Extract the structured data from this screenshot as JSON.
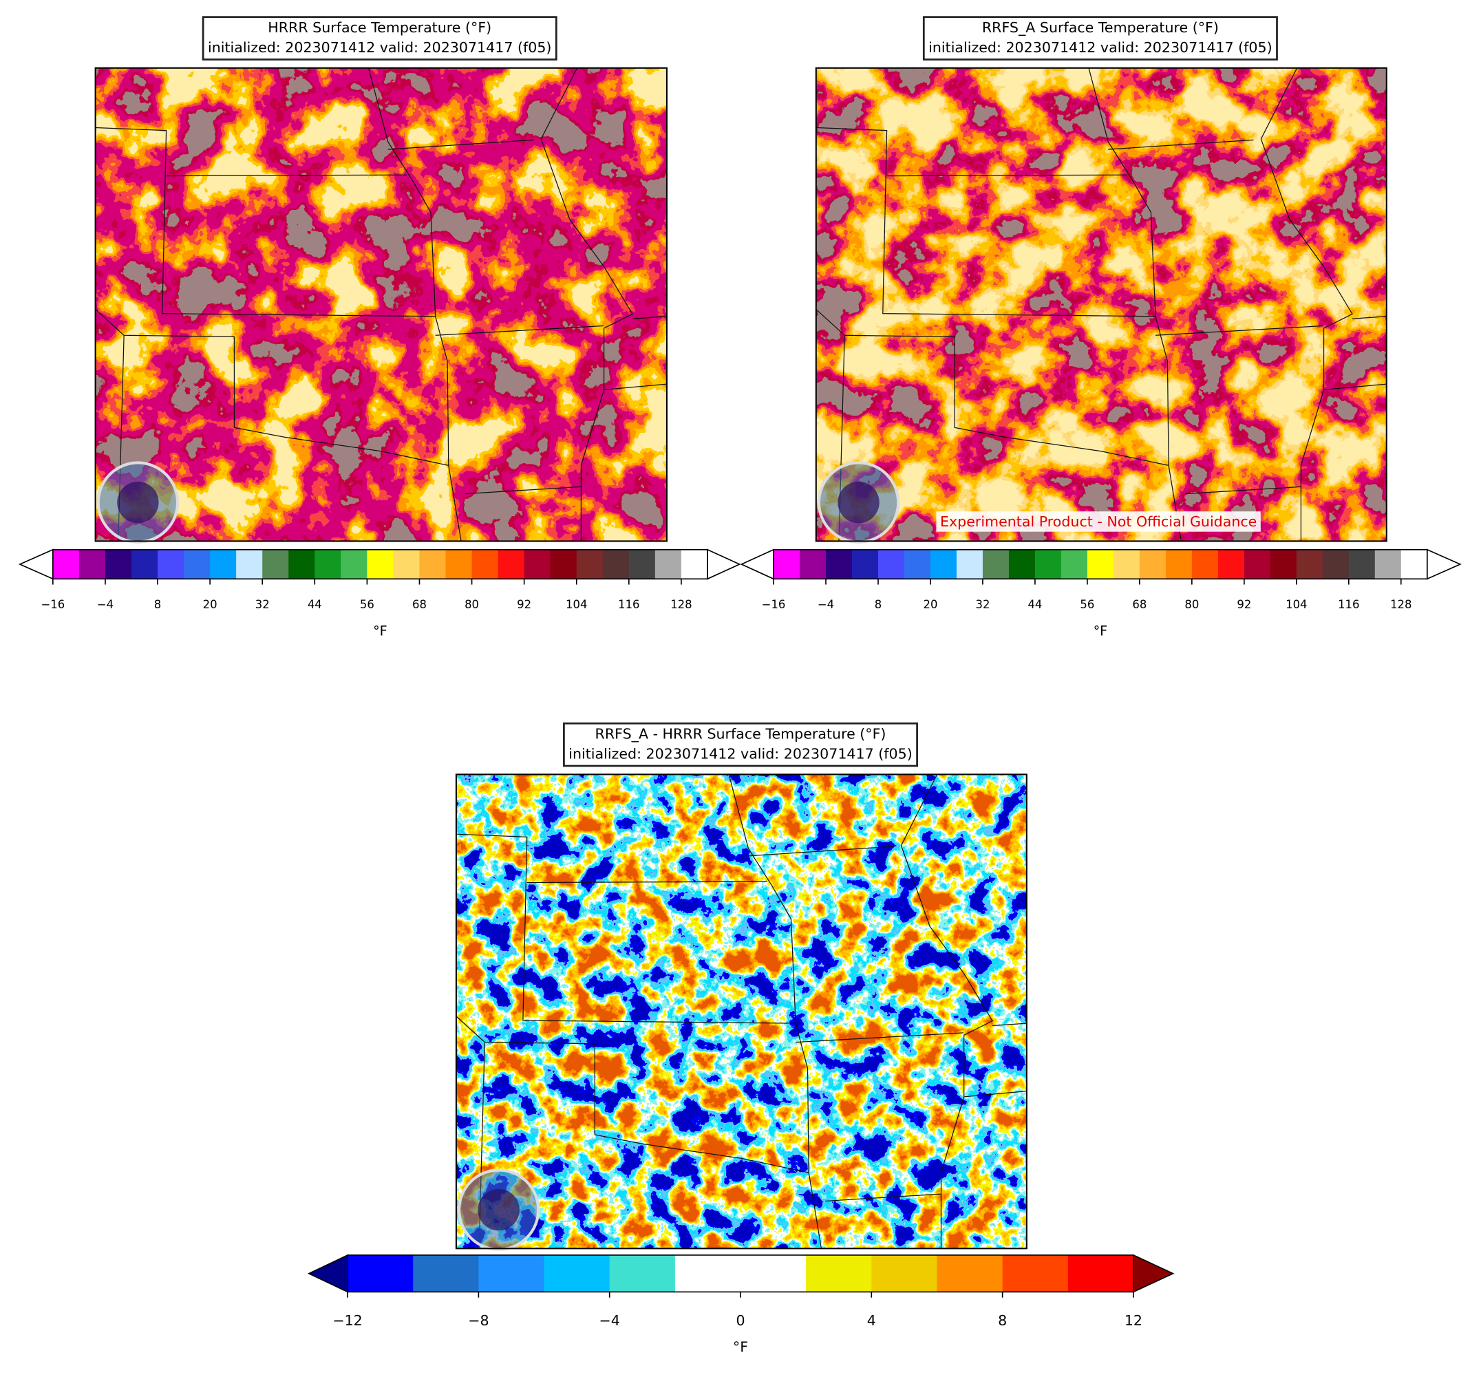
{
  "panels": [
    {
      "title": [
        "HRRR Surface Temperature (°F)",
        "initialized: 2023071412 valid: 2023071417 (f05)"
      ],
      "colorbar": {
        "bounds": [
          -16,
          -10,
          -4,
          2,
          8,
          14,
          20,
          26,
          32,
          38,
          44,
          50,
          56,
          62,
          68,
          74,
          80,
          86,
          92,
          98,
          104,
          110,
          116,
          122,
          128,
          134
        ],
        "colors": [
          "#ff00ff",
          "#990099",
          "#2e0080",
          "#2020b0",
          "#4a4aff",
          "#3070f0",
          "#00a0ff",
          "#c8e8ff",
          "#558855",
          "#006400",
          "#119922",
          "#44bb55",
          "#ffff00",
          "#ffd966",
          "#ffb030",
          "#ff8800",
          "#ff5000",
          "#ff1010",
          "#aa0030",
          "#8b0010",
          "#7b2a2a",
          "#553333",
          "#444444",
          "#aaaaaa",
          "#ffffff"
        ],
        "under_color": "#ffffff",
        "over_color": "#ffffff",
        "ticks": [
          {
            "value": -16,
            "label": "−16"
          },
          {
            "value": -4,
            "label": "−4"
          },
          8,
          20,
          32,
          44,
          56,
          68,
          80,
          92,
          104,
          116,
          128
        ],
        "label": "°F"
      }
    },
    {
      "title": [
        "RRFS_A Surface Temperature (°F)",
        "initialized: 2023071412 valid: 2023071417 (f05)"
      ],
      "annotation": "Experimental Product - Not Official Guidance",
      "colorbar": {
        "bounds": [
          -16,
          -10,
          -4,
          2,
          8,
          14,
          20,
          26,
          32,
          38,
          44,
          50,
          56,
          62,
          68,
          74,
          80,
          86,
          92,
          98,
          104,
          110,
          116,
          122,
          128,
          134
        ],
        "colors": [
          "#ff00ff",
          "#990099",
          "#2e0080",
          "#2020b0",
          "#4a4aff",
          "#3070f0",
          "#00a0ff",
          "#c8e8ff",
          "#558855",
          "#006400",
          "#119922",
          "#44bb55",
          "#ffff00",
          "#ffd966",
          "#ffb030",
          "#ff8800",
          "#ff5000",
          "#ff1010",
          "#aa0030",
          "#8b0010",
          "#7b2a2a",
          "#553333",
          "#444444",
          "#aaaaaa",
          "#ffffff"
        ],
        "under_color": "#ffffff",
        "over_color": "#ffffff",
        "ticks": [
          {
            "value": -16,
            "label": "−16"
          },
          {
            "value": -4,
            "label": "−4"
          },
          8,
          20,
          32,
          44,
          56,
          68,
          80,
          92,
          104,
          116,
          128
        ],
        "label": "°F"
      }
    },
    {
      "title": [
        "RRFS_A - HRRR Surface Temperature (°F)",
        "initialized: 2023071412 valid: 2023071417 (f05)"
      ],
      "colorbar": {
        "bounds": [
          -12,
          -10,
          -8,
          -6,
          -4,
          -2,
          2,
          4,
          6,
          8,
          10,
          12
        ],
        "colors": [
          "#0000ff",
          "#1f6fc6",
          "#1e90ff",
          "#00bfff",
          "#40e0d0",
          "#ffffff",
          "#eeee00",
          "#eecc00",
          "#ff8c00",
          "#ff4500",
          "#ff0000"
        ],
        "under_color": "#00008b",
        "over_color": "#8b0000",
        "ticks": [
          {
            "value": -12,
            "label": "−12"
          },
          {
            "value": -8,
            "label": "−8"
          },
          {
            "value": -4,
            "label": "−4"
          },
          0,
          4,
          8,
          12
        ],
        "label": "°F"
      }
    }
  ]
}
